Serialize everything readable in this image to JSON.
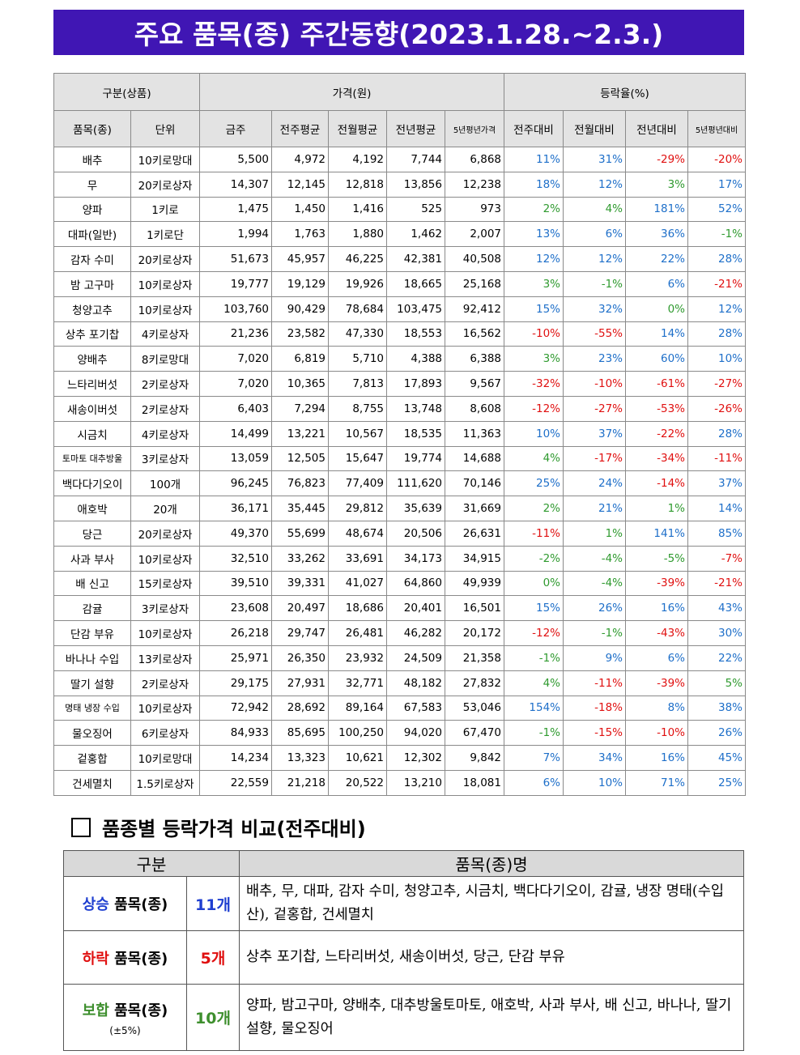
{
  "title": "주요 품목(종) 주간동향(2023.1.28.~2.3.)",
  "header": {
    "group_category": "구분(상품)",
    "group_price": "가격(원)",
    "group_rate": "등락율(%)",
    "item": "품목(종)",
    "unit": "단위",
    "this_week": "금주",
    "prev_week_avg": "전주평균",
    "prev_month_avg": "전월평균",
    "prev_year_avg": "전년평균",
    "five_year_avg": "5년평년가격",
    "vs_prev_week": "전주대비",
    "vs_prev_month": "전월대비",
    "vs_prev_year": "전년대비",
    "vs_five_year": "5년평년대비"
  },
  "rows": [
    {
      "name": "배추",
      "unit": "10키로망대",
      "p": [
        "5,500",
        "4,972",
        "4,192",
        "7,744",
        "6,868"
      ],
      "r": [
        "11%",
        "31%",
        "-29%",
        "-20%"
      ]
    },
    {
      "name": "무",
      "unit": "20키로상자",
      "p": [
        "14,307",
        "12,145",
        "12,818",
        "13,856",
        "12,238"
      ],
      "r": [
        "18%",
        "12%",
        "3%",
        "17%"
      ]
    },
    {
      "name": "양파",
      "unit": "1키로",
      "p": [
        "1,475",
        "1,450",
        "1,416",
        "525",
        "973"
      ],
      "r": [
        "2%",
        "4%",
        "181%",
        "52%"
      ]
    },
    {
      "name": "대파(일반)",
      "unit": "1키로단",
      "p": [
        "1,994",
        "1,763",
        "1,880",
        "1,462",
        "2,007"
      ],
      "r": [
        "13%",
        "6%",
        "36%",
        "-1%"
      ]
    },
    {
      "name": "감자 수미",
      "unit": "20키로상자",
      "p": [
        "51,673",
        "45,957",
        "46,225",
        "42,381",
        "40,508"
      ],
      "r": [
        "12%",
        "12%",
        "22%",
        "28%"
      ]
    },
    {
      "name": "밤 고구마",
      "unit": "10키로상자",
      "p": [
        "19,777",
        "19,129",
        "19,926",
        "18,665",
        "25,168"
      ],
      "r": [
        "3%",
        "-1%",
        "6%",
        "-21%"
      ]
    },
    {
      "name": "청양고추",
      "unit": "10키로상자",
      "p": [
        "103,760",
        "90,429",
        "78,684",
        "103,475",
        "92,412"
      ],
      "r": [
        "15%",
        "32%",
        "0%",
        "12%"
      ]
    },
    {
      "name": "상추 포기찹",
      "unit": "4키로상자",
      "p": [
        "21,236",
        "23,582",
        "47,330",
        "18,553",
        "16,562"
      ],
      "r": [
        "-10%",
        "-55%",
        "14%",
        "28%"
      ]
    },
    {
      "name": "양배추",
      "unit": "8키로망대",
      "p": [
        "7,020",
        "6,819",
        "5,710",
        "4,388",
        "6,388"
      ],
      "r": [
        "3%",
        "23%",
        "60%",
        "10%"
      ]
    },
    {
      "name": "느타리버섯",
      "unit": "2키로상자",
      "p": [
        "7,020",
        "10,365",
        "7,813",
        "17,893",
        "9,567"
      ],
      "r": [
        "-32%",
        "-10%",
        "-61%",
        "-27%"
      ]
    },
    {
      "name": "새송이버섯",
      "unit": "2키로상자",
      "p": [
        "6,403",
        "7,294",
        "8,755",
        "13,748",
        "8,608"
      ],
      "r": [
        "-12%",
        "-27%",
        "-53%",
        "-26%"
      ]
    },
    {
      "name": "시금치",
      "unit": "4키로상자",
      "p": [
        "14,499",
        "13,221",
        "10,567",
        "18,535",
        "11,363"
      ],
      "r": [
        "10%",
        "37%",
        "-22%",
        "28%"
      ]
    },
    {
      "name": "토마토 대추방울",
      "unit": "3키로상자",
      "p": [
        "13,059",
        "12,505",
        "15,647",
        "19,774",
        "14,688"
      ],
      "r": [
        "4%",
        "-17%",
        "-34%",
        "-11%"
      ]
    },
    {
      "name": "백다다기오이",
      "unit": "100개",
      "p": [
        "96,245",
        "76,823",
        "77,409",
        "111,620",
        "70,146"
      ],
      "r": [
        "25%",
        "24%",
        "-14%",
        "37%"
      ]
    },
    {
      "name": "애호박",
      "unit": "20개",
      "p": [
        "36,171",
        "35,445",
        "29,812",
        "35,639",
        "31,669"
      ],
      "r": [
        "2%",
        "21%",
        "1%",
        "14%"
      ]
    },
    {
      "name": "당근",
      "unit": "20키로상자",
      "p": [
        "49,370",
        "55,699",
        "48,674",
        "20,506",
        "26,631"
      ],
      "r": [
        "-11%",
        "1%",
        "141%",
        "85%"
      ]
    },
    {
      "name": "사과 부사",
      "unit": "10키로상자",
      "p": [
        "32,510",
        "33,262",
        "33,691",
        "34,173",
        "34,915"
      ],
      "r": [
        "-2%",
        "-4%",
        "-5%",
        "-7%"
      ]
    },
    {
      "name": "배 신고",
      "unit": "15키로상자",
      "p": [
        "39,510",
        "39,331",
        "41,027",
        "64,860",
        "49,939"
      ],
      "r": [
        "0%",
        "-4%",
        "-39%",
        "-21%"
      ]
    },
    {
      "name": "감귤",
      "unit": "3키로상자",
      "p": [
        "23,608",
        "20,497",
        "18,686",
        "20,401",
        "16,501"
      ],
      "r": [
        "15%",
        "26%",
        "16%",
        "43%"
      ]
    },
    {
      "name": "단감 부유",
      "unit": "10키로상자",
      "p": [
        "26,218",
        "29,747",
        "26,481",
        "46,282",
        "20,172"
      ],
      "r": [
        "-12%",
        "-1%",
        "-43%",
        "30%"
      ]
    },
    {
      "name": "바나나 수입",
      "unit": "13키로상자",
      "p": [
        "25,971",
        "26,350",
        "23,932",
        "24,509",
        "21,358"
      ],
      "r": [
        "-1%",
        "9%",
        "6%",
        "22%"
      ]
    },
    {
      "name": "딸기 설향",
      "unit": "2키로상자",
      "p": [
        "29,175",
        "27,931",
        "32,771",
        "48,182",
        "27,832"
      ],
      "r": [
        "4%",
        "-11%",
        "-39%",
        "5%"
      ]
    },
    {
      "name": "명태 냉장 수입",
      "unit": "10키로상자",
      "p": [
        "72,942",
        "28,692",
        "89,164",
        "67,583",
        "53,046"
      ],
      "r": [
        "154%",
        "-18%",
        "8%",
        "38%"
      ]
    },
    {
      "name": "물오징어",
      "unit": "6키로상자",
      "p": [
        "84,933",
        "85,695",
        "100,250",
        "94,020",
        "67,470"
      ],
      "r": [
        "-1%",
        "-15%",
        "-10%",
        "26%"
      ]
    },
    {
      "name": "겉홍합",
      "unit": "10키로망대",
      "p": [
        "14,234",
        "13,323",
        "10,621",
        "12,302",
        "9,842"
      ],
      "r": [
        "7%",
        "34%",
        "16%",
        "45%"
      ]
    },
    {
      "name": "건세멸치",
      "unit": "1.5키로상자",
      "p": [
        "22,559",
        "21,218",
        "20,522",
        "13,210",
        "18,081"
      ],
      "r": [
        "6%",
        "10%",
        "71%",
        "25%"
      ]
    }
  ],
  "comparison": {
    "section_title": "품종별 등락가격 비교(전주대비)",
    "col_category": "구분",
    "col_items": "품목(종)명",
    "up": {
      "label_a": "상승",
      "label_b": " 품목(종)",
      "count": "11개",
      "items": "배추, 무, 대파, 감자 수미, 청양고추, 시금치, 백다다기오이, 감귤, 냉장 명태(수입산), 겉홍합, 건세멸치"
    },
    "down": {
      "label_a": "하락",
      "label_b": " 품목(종)",
      "count": "5개",
      "items": "상추 포기찹, 느타리버섯, 새송이버섯, 당근, 단감 부유"
    },
    "flat": {
      "label_a": "보합",
      "label_b": " 품목(종)",
      "note": "(±5%)",
      "count": "10개",
      "items": "양파, 밤고구마, 양배추, 대추방울토마토, 애호박, 사과 부사, 배 신고, 바나나, 딸기 설향, 물오징어"
    }
  },
  "colors": {
    "title_bg": "#4016b4",
    "positive": "#1e6fc9",
    "negative": "#e01010",
    "flat": "#2f9a2f"
  }
}
